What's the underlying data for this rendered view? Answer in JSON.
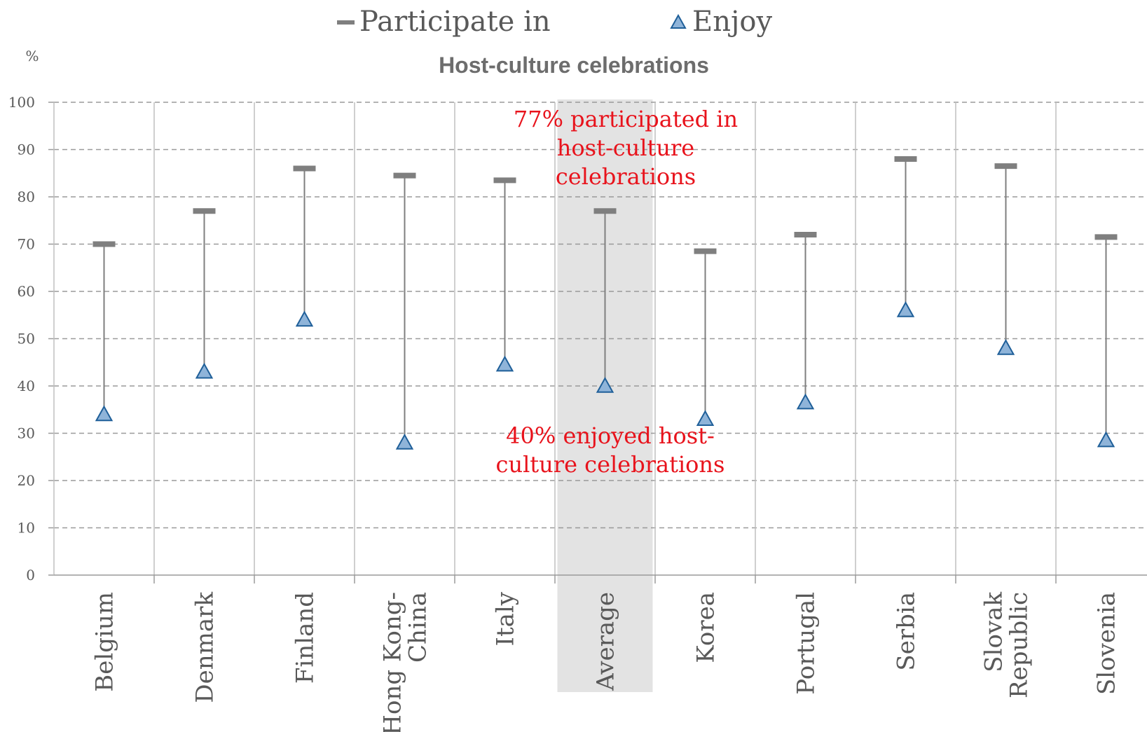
{
  "colors": {
    "participate": "#7f7f7f",
    "enjoy_fill": "#8fb4d9",
    "enjoy_stroke": "#1f5f99",
    "range_line": "#7f7f7f",
    "grid": "#9a9a9a",
    "category_divider": "#bfbfbf",
    "highlight": "#e3e3e3",
    "annotation": "#e8131c",
    "text": "#595959"
  },
  "chart_data": {
    "type": "scatter",
    "title": "Host-culture celebrations",
    "ylabel": "%",
    "ylim": [
      0,
      100
    ],
    "yticks": [
      "0",
      "10",
      "20",
      "30",
      "40",
      "50",
      "60",
      "70",
      "80",
      "90",
      "100"
    ],
    "grid": true,
    "legend_position": "top-center",
    "categories": [
      {
        "label_lines": [
          "Belgium"
        ]
      },
      {
        "label_lines": [
          "Denmark"
        ]
      },
      {
        "label_lines": [
          "Finland"
        ]
      },
      {
        "label_lines": [
          "Hong Kong-",
          "China"
        ]
      },
      {
        "label_lines": [
          "Italy"
        ]
      },
      {
        "label_lines": [
          "Average"
        ]
      },
      {
        "label_lines": [
          "Korea"
        ]
      },
      {
        "label_lines": [
          "Portugal"
        ]
      },
      {
        "label_lines": [
          "Serbia"
        ]
      },
      {
        "label_lines": [
          "Slovak",
          "Republic"
        ]
      },
      {
        "label_lines": [
          "Slovenia"
        ]
      }
    ],
    "highlighted_category": "Average",
    "series": [
      {
        "name": "Participate in",
        "marker": "dash",
        "values": [
          70,
          77,
          86,
          84.5,
          83.5,
          77,
          68.5,
          72,
          88,
          86.5,
          71.5
        ]
      },
      {
        "name": "Enjoy",
        "marker": "triangle",
        "values": [
          34,
          43,
          54,
          28,
          44.5,
          40,
          33,
          36.5,
          56,
          48,
          28.5
        ]
      }
    ],
    "annotations": [
      {
        "lines": [
          "77% participated in",
          "host-culture",
          "celebrations"
        ]
      },
      {
        "lines": [
          "40% enjoyed host-",
          "culture celebrations"
        ]
      }
    ]
  }
}
